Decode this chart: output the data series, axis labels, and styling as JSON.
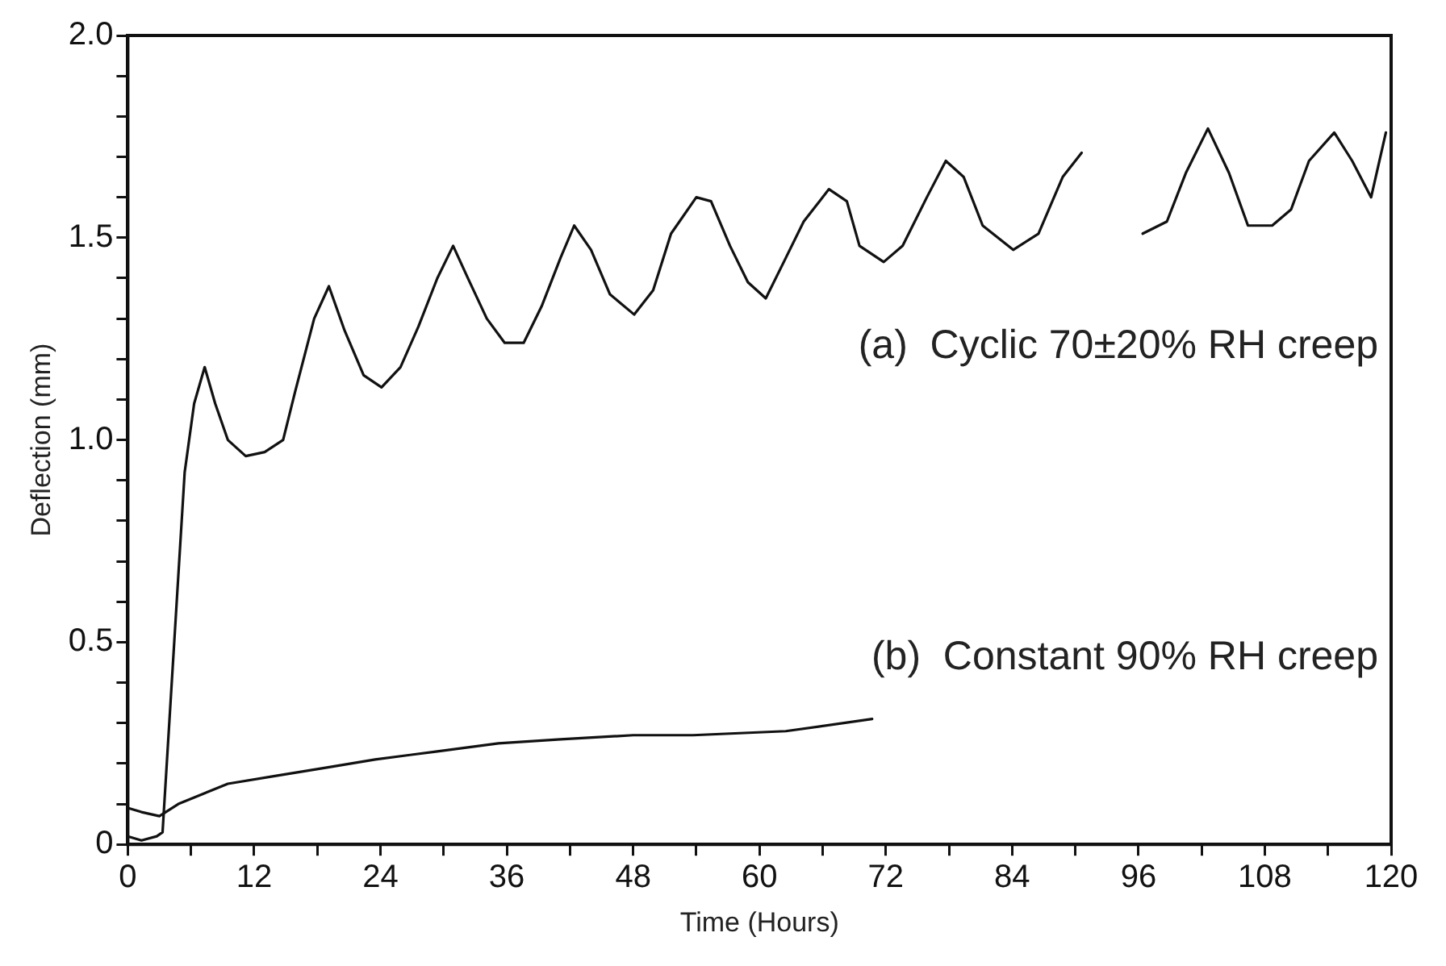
{
  "chart_data": {
    "type": "line",
    "xlabel": "Time (Hours)",
    "ylabel": "Deflection (mm)",
    "annotations": [
      "(a)  Cyclic 70±20% RH creep",
      "(b)  Constant 90% RH creep"
    ],
    "xlim": [
      0,
      120
    ],
    "ylim": [
      0,
      2
    ],
    "xticks": [
      0,
      {
        "value": 6,
        "label": null
      },
      12,
      {
        "value": 18,
        "label": null
      },
      24,
      {
        "value": 30,
        "label": null
      },
      36,
      {
        "value": 42,
        "label": null
      },
      48,
      {
        "value": 54,
        "label": null
      },
      60,
      {
        "value": 66,
        "label": null
      },
      72,
      {
        "value": 78,
        "label": null
      },
      84,
      {
        "value": 90,
        "label": null
      },
      96,
      {
        "value": 102,
        "label": null
      },
      108,
      {
        "value": 114,
        "label": null
      },
      120
    ],
    "yticks": [
      0,
      {
        "value": 0.1,
        "label": null
      },
      {
        "value": 0.2,
        "label": null
      },
      {
        "value": 0.3,
        "label": null
      },
      {
        "value": 0.4,
        "label": null
      },
      0.5,
      {
        "value": 0.6,
        "label": null
      },
      {
        "value": 0.7,
        "label": null
      },
      {
        "value": 0.8,
        "label": null
      },
      {
        "value": 0.9,
        "label": null
      },
      {
        "value": 1,
        "label": "1.0"
      },
      {
        "value": 1.1,
        "label": null
      },
      {
        "value": 1.2,
        "label": null
      },
      {
        "value": 1.3,
        "label": null
      },
      {
        "value": 1.4,
        "label": null
      },
      1.5,
      {
        "value": 1.6,
        "label": null
      },
      {
        "value": 1.7,
        "label": null
      },
      {
        "value": 1.8,
        "label": null
      },
      {
        "value": 1.9,
        "label": null
      },
      {
        "value": 2,
        "label": "2.0"
      }
    ],
    "grid": false,
    "legend": false,
    "marker": "none",
    "line_style": "solid",
    "series": [
      {
        "color": "#111111",
        "x": [
          0,
          1.3,
          2.75,
          3.3,
          5.4,
          6.3,
          7.3,
          8.3,
          9.5,
          11.2,
          13,
          14.75,
          15.9,
          17.7,
          19.1,
          20.6,
          22.4,
          24.1,
          25.9,
          27.6,
          29.4,
          30.9,
          32.3,
          34.1,
          35.8,
          37.6,
          39.3,
          41.1,
          42.4,
          44,
          45.8,
          48.1,
          49.9,
          51.6,
          54,
          55.4,
          57.2,
          58.9,
          60.6,
          62.5,
          64.2,
          66.6,
          68.3,
          69.5,
          71.8,
          73.6,
          75.9,
          77.7,
          79.4,
          81.2,
          84.1,
          86.5,
          88.8,
          90.6,
          93.5,
          96.4,
          98.7,
          100.5,
          102.6,
          104.6,
          106.4,
          108.7,
          110.5,
          112.2,
          114.6,
          116.3,
          118.1,
          119.5
        ],
        "values": [
          0.02,
          0.01,
          0.02,
          0.03,
          0.92,
          1.09,
          1.18,
          1.09,
          1,
          0.96,
          0.97,
          1,
          1.12,
          1.3,
          1.38,
          1.27,
          1.16,
          1.13,
          1.18,
          1.28,
          1.4,
          1.48,
          1.4,
          1.3,
          1.24,
          1.24,
          1.33,
          1.45,
          1.53,
          1.47,
          1.36,
          1.31,
          1.37,
          1.51,
          1.6,
          1.59,
          1.48,
          1.39,
          1.35,
          1.45,
          1.54,
          1.62,
          1.59,
          1.48,
          1.44,
          1.48,
          1.6,
          1.69,
          1.65,
          1.53,
          1.47,
          1.51,
          1.65,
          1.71,
          null,
          1.51,
          1.54,
          1.66,
          1.77,
          1.66,
          1.53,
          1.53,
          1.57,
          1.69,
          1.76,
          1.69,
          1.6,
          1.76
        ]
      },
      {
        "color": "#111111",
        "x": [
          0,
          1.3,
          3,
          4.8,
          9.5,
          14.2,
          18.9,
          23.5,
          29.4,
          35.2,
          41.1,
          48,
          53.7,
          62.5,
          70.7
        ],
        "values": [
          0.09,
          0.08,
          0.07,
          0.1,
          0.15,
          0.17,
          0.19,
          0.21,
          0.23,
          0.25,
          0.26,
          0.27,
          0.27,
          0.28,
          0.31
        ]
      }
    ]
  }
}
